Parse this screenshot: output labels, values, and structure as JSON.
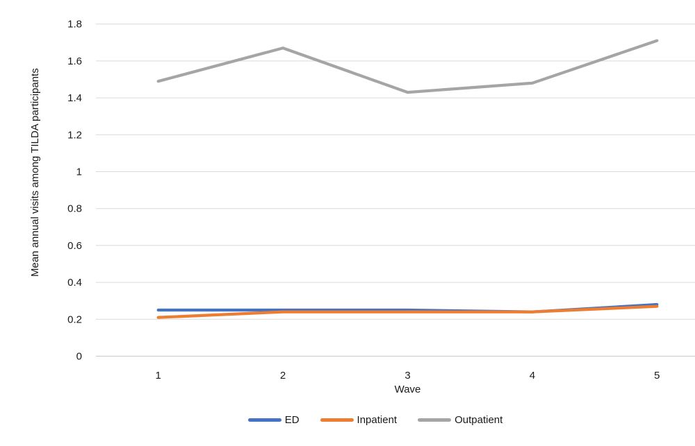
{
  "chart_data": {
    "type": "line",
    "title": "",
    "xlabel": "Wave",
    "ylabel": "Mean annual visits among TILDA participants",
    "x_ticks": [
      "1",
      "2",
      "3",
      "4",
      "5"
    ],
    "y_ticks": [
      "0",
      "0.2",
      "0.4",
      "0.6",
      "0.8",
      "1",
      "1.2",
      "1.4",
      "1.6",
      "1.8"
    ],
    "ylim": [
      0,
      1.8
    ],
    "grid": "horizontal",
    "legend_position": "bottom",
    "series": [
      {
        "name": "ED",
        "color": "#4472C4",
        "values": [
          0.25,
          0.25,
          0.25,
          0.24,
          0.28
        ]
      },
      {
        "name": "Inpatient",
        "color": "#ED7D31",
        "values": [
          0.21,
          0.24,
          0.24,
          0.24,
          0.27
        ]
      },
      {
        "name": "Outpatient",
        "color": "#A5A5A5",
        "values": [
          1.49,
          1.67,
          1.43,
          1.48,
          1.71
        ]
      }
    ],
    "colors": {
      "grid": "#D9D9D9",
      "axis": "#C9C9C9",
      "text": "#1a1a1a"
    }
  }
}
